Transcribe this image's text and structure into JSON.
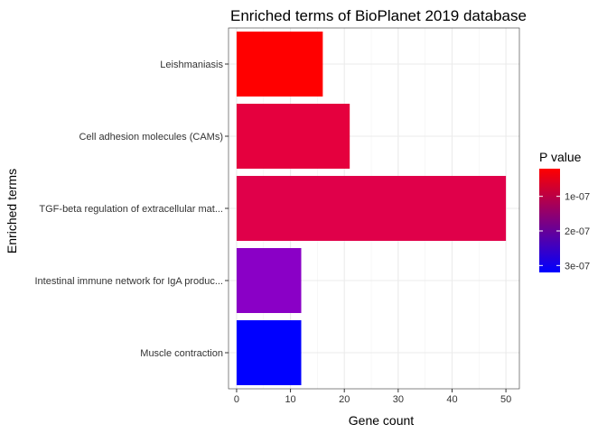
{
  "chart_data": {
    "type": "bar",
    "orientation": "horizontal",
    "title": "Enriched terms of BioPlanet 2019 database",
    "xlabel": "Gene count",
    "ylabel": "Enriched terms",
    "xlim": [
      -1.5,
      52.5
    ],
    "x_ticks": [
      "0",
      "10",
      "20",
      "30",
      "40",
      "50"
    ],
    "x_tick_values": [
      0,
      10,
      20,
      30,
      40,
      50
    ],
    "grid": true,
    "categories": [
      "Leishmaniasis",
      "Cell adhesion molecules (CAMs)",
      "TGF-beta regulation of extracellular mat...",
      "Intestinal immune network for IgA produc...",
      "Muscle contraction"
    ],
    "values": [
      16,
      21,
      50,
      12,
      12
    ],
    "p_values": [
      2e-08,
      8e-08,
      8e-08,
      2.1e-07,
      3.2e-07
    ],
    "colors": [
      "#FF0000",
      "#E5003E",
      "#E0004A",
      "#8A00C6",
      "#0000FF"
    ],
    "legend": {
      "title": "P value",
      "labels": [
        "1e-07",
        "2e-07",
        "3e-07"
      ],
      "label_values": [
        1e-07,
        2e-07,
        3e-07
      ],
      "range": [
        2e-08,
        3.2e-07
      ],
      "low_color": "#FF0000",
      "high_color": "#0000FF",
      "placement": "right"
    }
  }
}
